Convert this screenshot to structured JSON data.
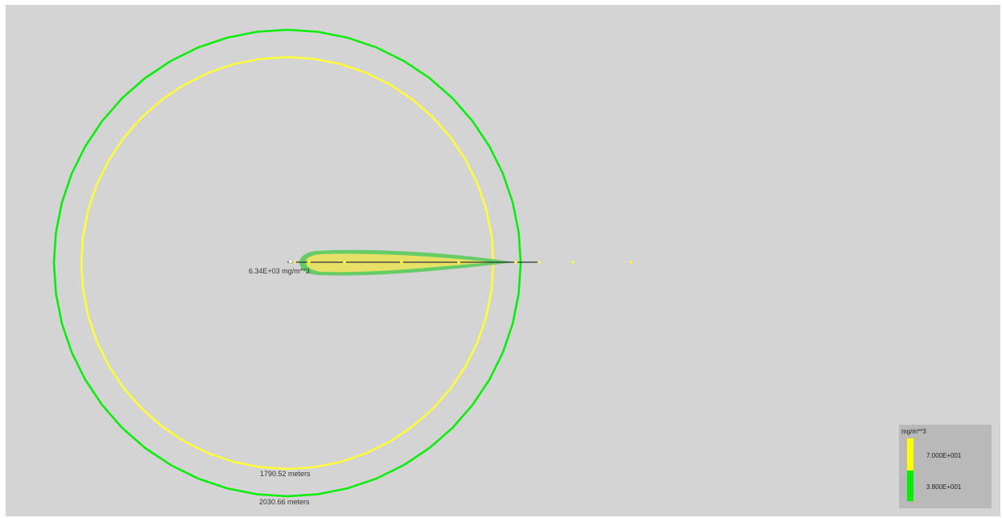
{
  "plot": {
    "background": "#d4d4d4",
    "source_label": "6.34E+03 mg/m**3",
    "rings": [
      {
        "label": "1790.52 meters",
        "color": "#ffff33"
      },
      {
        "label": "2030.66 meters",
        "color": "#00ee00"
      }
    ],
    "plume_colors": {
      "outer": "#66cc66",
      "inner": "#e6e066"
    },
    "centerline_color": "#333333",
    "marker_color": "#ffff33"
  },
  "legend": {
    "title": "mg/m**3",
    "entries": [
      {
        "value": "7.000E+001",
        "color": "#ffff00"
      },
      {
        "value": "3.800E+001",
        "color": "#00ee00"
      }
    ]
  }
}
